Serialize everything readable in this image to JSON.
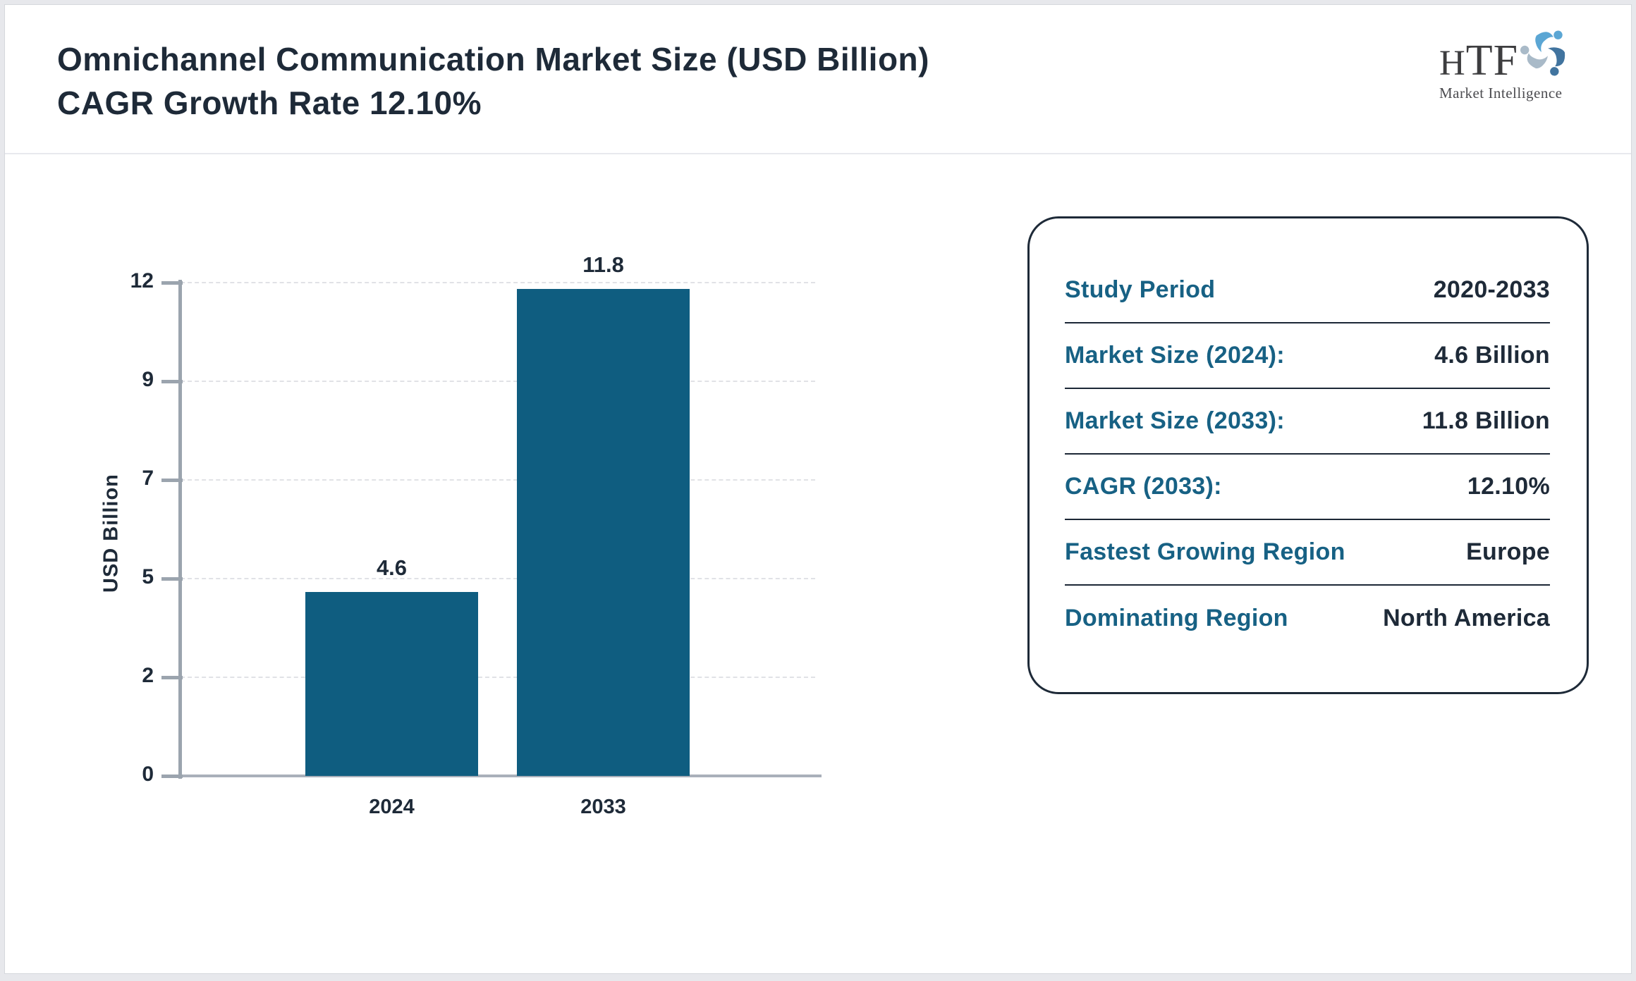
{
  "header": {
    "title": "Omnichannel Communication Market Size (USD Billion) CAGR Growth Rate 12.10%",
    "logo": {
      "brand": "HTF",
      "tagline": "Market Intelligence",
      "swirl_colors": [
        "#5ba6d4",
        "#41749f",
        "#a9bac8"
      ]
    }
  },
  "chart_data": {
    "type": "bar",
    "title": "Omnichannel Communication Market Size (USD Billion) CAGR Growth Rate 12.10%",
    "categories": [
      "2024",
      "2033"
    ],
    "values": [
      4.6,
      11.8
    ],
    "value_labels": [
      "4.6",
      "11.8"
    ],
    "xlabel": "",
    "ylabel": "USD Billion",
    "yticks": [
      0,
      2,
      5,
      7,
      9,
      12
    ],
    "ylim": [
      0,
      12
    ],
    "grid": "horizontal-dashed",
    "legend_position": "none",
    "bar_color": "#0f5d80"
  },
  "panel": {
    "rows": [
      {
        "label": "Study Period",
        "value": "2020-2033"
      },
      {
        "label": "Market Size (2024):",
        "value": "4.6 Billion"
      },
      {
        "label": "Market Size (2033):",
        "value": "11.8 Billion"
      },
      {
        "label": "CAGR (2033):",
        "value": "12.10%"
      },
      {
        "label": "Fastest Growing Region",
        "value": "Europe"
      },
      {
        "label": "Dominating Region",
        "value": "North America"
      }
    ]
  },
  "colors": {
    "accent_teal": "#176184",
    "text_dark": "#1e2a38",
    "bar": "#0f5d80",
    "page_background": "#e7e8ec"
  }
}
